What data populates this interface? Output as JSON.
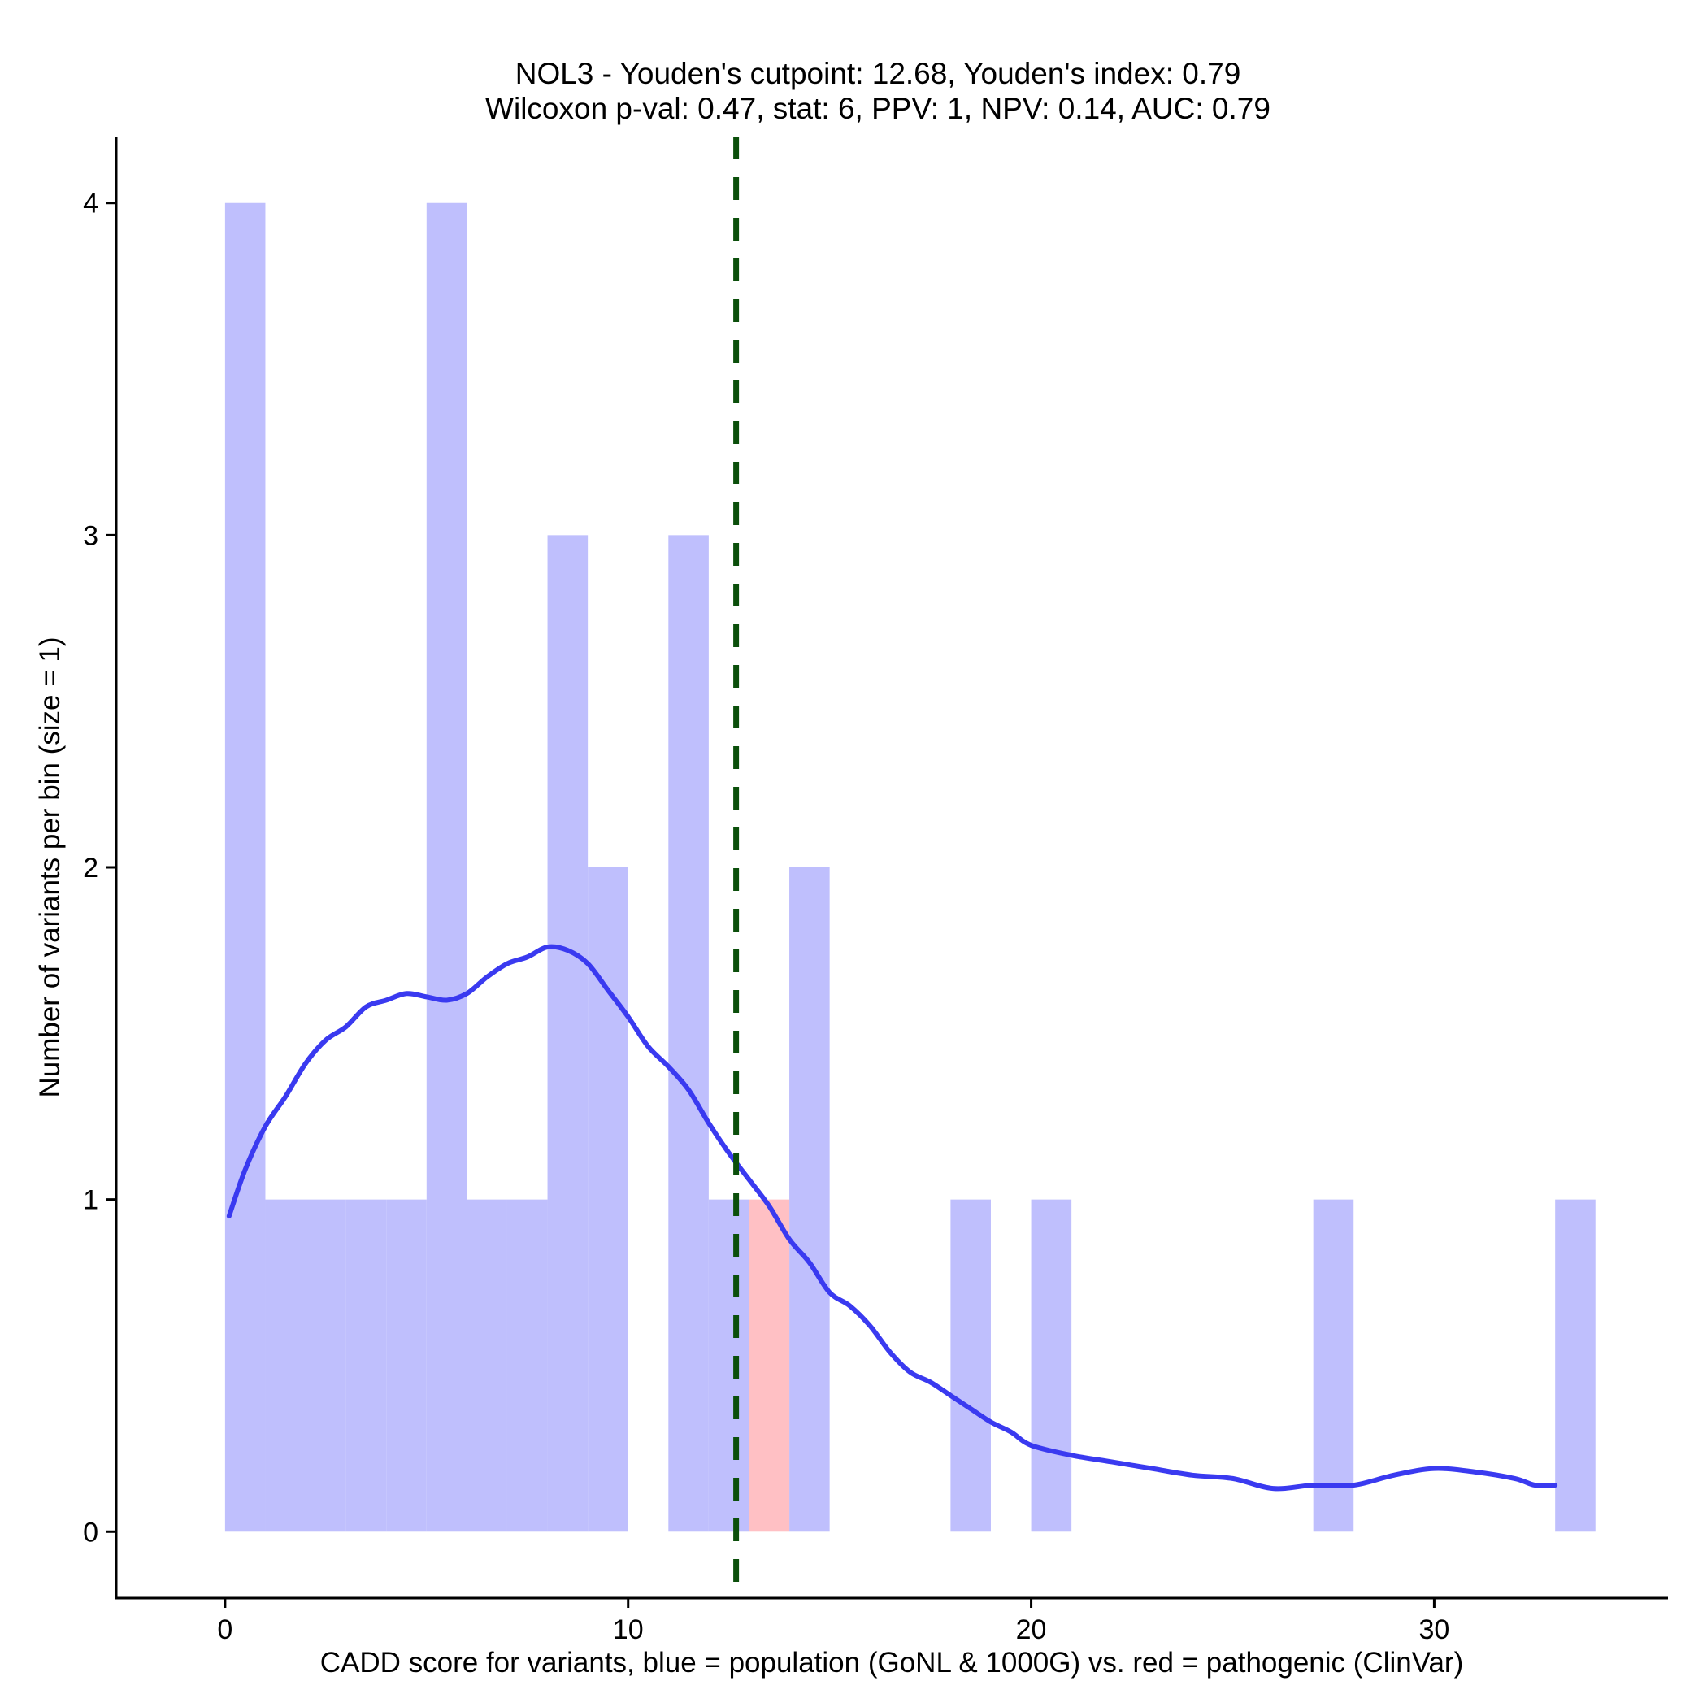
{
  "chart_data": {
    "type": "bar",
    "title": "NOL3 - Youden's cutpoint: 12.68, Youden's index: 0.79",
    "subtitle": "Wilcoxon p-val: 0.47, stat: 6, PPV: 1, NPV: 0.14, AUC: 0.79",
    "xlabel": "CADD score for variants, blue = population (GoNL & 1000G) vs. red = pathogenic (ClinVar)",
    "ylabel": "Number of variants per bin (size = 1)",
    "xlim": [
      -2.7,
      35.8
    ],
    "ylim": [
      -0.2,
      4.2
    ],
    "x_ticks": [
      0,
      10,
      20,
      30
    ],
    "y_ticks": [
      0,
      1,
      2,
      3,
      4
    ],
    "bin_size": 1,
    "colors": {
      "population": "#bfbffd",
      "pathogenic": "#ffc0c4",
      "density": "#3a3af0",
      "cutpoint": "#0b4f0b"
    },
    "series": [
      {
        "name": "population",
        "bins": [
          {
            "start": 0,
            "count": 4
          },
          {
            "start": 1,
            "count": 1
          },
          {
            "start": 2,
            "count": 1
          },
          {
            "start": 3,
            "count": 1
          },
          {
            "start": 4,
            "count": 1
          },
          {
            "start": 5,
            "count": 4
          },
          {
            "start": 6,
            "count": 1
          },
          {
            "start": 7,
            "count": 1
          },
          {
            "start": 8,
            "count": 3
          },
          {
            "start": 9,
            "count": 2
          },
          {
            "start": 11,
            "count": 3
          },
          {
            "start": 12,
            "count": 1
          },
          {
            "start": 14,
            "count": 2
          },
          {
            "start": 18,
            "count": 1
          },
          {
            "start": 20,
            "count": 1
          },
          {
            "start": 27,
            "count": 1
          },
          {
            "start": 33,
            "count": 1
          }
        ]
      },
      {
        "name": "pathogenic",
        "bins": [
          {
            "start": 13,
            "count": 1
          }
        ]
      }
    ],
    "density": {
      "x": [
        0.1,
        0.5,
        1.0,
        1.5,
        2.0,
        2.5,
        3.0,
        3.5,
        4.0,
        4.5,
        5.0,
        5.5,
        6.0,
        6.5,
        7.0,
        7.5,
        8.0,
        8.5,
        9.0,
        9.5,
        10.0,
        10.5,
        11.0,
        11.5,
        12.0,
        12.5,
        13.0,
        13.5,
        14.0,
        14.5,
        15.0,
        15.5,
        16.0,
        16.5,
        17.0,
        17.5,
        18.0,
        18.5,
        19.0,
        19.5,
        20.0,
        21.0,
        22.0,
        23.0,
        24.0,
        25.0,
        26.0,
        27.0,
        28.0,
        29.0,
        30.0,
        31.0,
        32.0,
        32.5,
        33.0
      ],
      "y": [
        0.95,
        1.09,
        1.22,
        1.31,
        1.41,
        1.48,
        1.52,
        1.58,
        1.6,
        1.62,
        1.61,
        1.6,
        1.62,
        1.67,
        1.71,
        1.73,
        1.76,
        1.75,
        1.71,
        1.63,
        1.55,
        1.46,
        1.4,
        1.33,
        1.23,
        1.14,
        1.06,
        0.98,
        0.88,
        0.81,
        0.72,
        0.68,
        0.62,
        0.54,
        0.48,
        0.45,
        0.41,
        0.37,
        0.33,
        0.3,
        0.26,
        0.23,
        0.21,
        0.19,
        0.17,
        0.16,
        0.13,
        0.14,
        0.14,
        0.17,
        0.19,
        0.18,
        0.16,
        0.14,
        0.14
      ]
    },
    "cutpoint": 12.68
  }
}
